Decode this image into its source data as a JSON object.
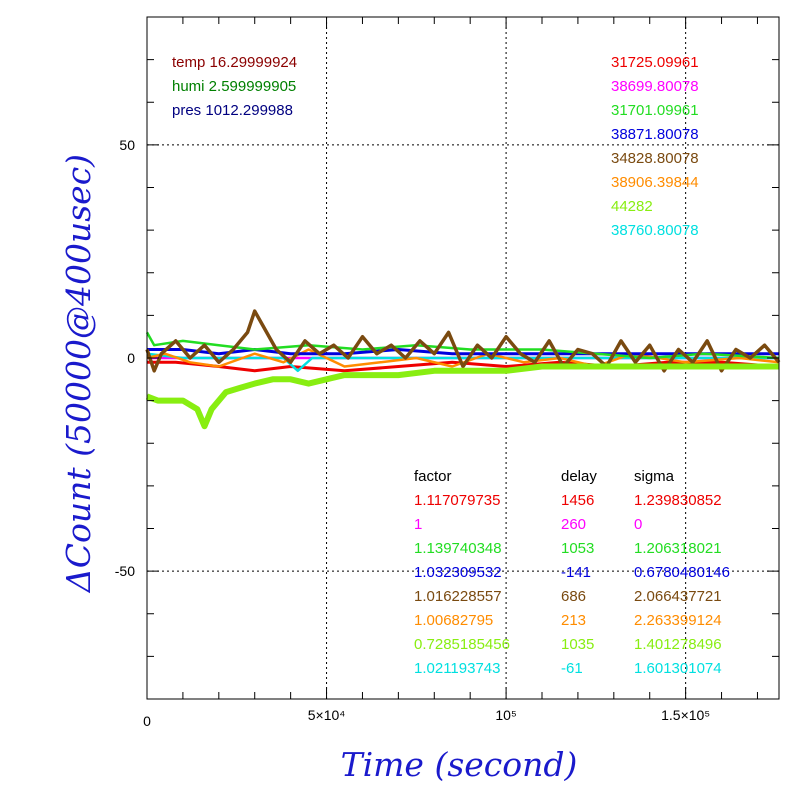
{
  "chart_data": {
    "type": "line",
    "title": "",
    "xlabel": "Time (second)",
    "ylabel": "ΔCount (50000@400usec)",
    "label_color": "#1a1acc",
    "xlim": [
      0,
      176000
    ],
    "ylim": [
      -80,
      80
    ],
    "grid": true,
    "x_ticks": [
      {
        "value": 0,
        "label": "0"
      },
      {
        "value": 50000,
        "label": "5×10⁴"
      },
      {
        "value": 100000,
        "label": "10⁵"
      },
      {
        "value": 150000,
        "label": "1.5×10⁵"
      }
    ],
    "y_ticks": [
      {
        "value": 50,
        "label": "50"
      },
      {
        "value": 0,
        "label": "0"
      },
      {
        "value": -50,
        "label": "-50"
      }
    ],
    "env_labels": [
      {
        "text": "temp 16.29999924",
        "color": "#8b0000"
      },
      {
        "text": "humi 2.599999905",
        "color": "#008000"
      },
      {
        "text": "pres 1012.299988",
        "color": "#000080"
      }
    ],
    "table_headers": {
      "factor": "factor",
      "delay": "delay",
      "sigma": "sigma"
    },
    "series": [
      {
        "name": "31725.09961",
        "color": "#ee0000",
        "factor": "1.117079735",
        "delay": "1456",
        "sigma": "1.239830852",
        "x": [
          0,
          8000,
          20000,
          30000,
          40000,
          55000,
          70000,
          85000,
          100000,
          115000,
          130000,
          145000,
          160000,
          176000
        ],
        "values": [
          -1,
          -1,
          -2,
          -3,
          -2,
          -3,
          -2,
          -1,
          -2,
          -1,
          -2,
          -1,
          -1,
          -2
        ]
      },
      {
        "name": "38699.80078",
        "color": "#ff00ff",
        "factor": "1",
        "delay": "260",
        "sigma": "0",
        "x": [
          0,
          176000
        ],
        "values": [
          0,
          0
        ]
      },
      {
        "name": "31701.09961",
        "color": "#22dd22",
        "factor": "1.139740348",
        "delay": "1053",
        "sigma": "1.206318021",
        "x": [
          0,
          2000,
          10000,
          20000,
          30000,
          45000,
          60000,
          75000,
          90000,
          110000,
          125000,
          140000,
          155000,
          176000
        ],
        "values": [
          6,
          3,
          4,
          3,
          2,
          3,
          2,
          3,
          2,
          2,
          1,
          0,
          1,
          0
        ]
      },
      {
        "name": "38871.80078",
        "color": "#0000dd",
        "factor": "1.032309532",
        "delay": "-141",
        "sigma": "0.6780480146",
        "x": [
          0,
          10000,
          20000,
          30000,
          40000,
          55000,
          70000,
          85000,
          100000,
          115000,
          130000,
          145000,
          160000,
          176000
        ],
        "values": [
          2,
          2,
          1,
          2,
          1,
          1,
          2,
          1,
          1,
          1,
          1,
          1,
          1,
          1
        ]
      },
      {
        "name": "34828.80078",
        "color": "#7a4a10",
        "factor": "1.016228557",
        "delay": "686",
        "sigma": "2.066437721",
        "x": [
          0,
          2000,
          4000,
          8000,
          12000,
          16000,
          20000,
          24000,
          28000,
          30000,
          32000,
          36000,
          40000,
          44000,
          48000,
          52000,
          56000,
          60000,
          64000,
          68000,
          72000,
          76000,
          80000,
          84000,
          88000,
          92000,
          96000,
          100000,
          104000,
          108000,
          112000,
          116000,
          120000,
          124000,
          128000,
          132000,
          136000,
          140000,
          144000,
          148000,
          152000,
          156000,
          160000,
          164000,
          168000,
          172000,
          176000
        ],
        "values": [
          2,
          -3,
          1,
          4,
          0,
          3,
          -1,
          2,
          6,
          11,
          8,
          2,
          -1,
          4,
          1,
          3,
          0,
          5,
          1,
          3,
          0,
          4,
          1,
          6,
          -2,
          3,
          0,
          5,
          1,
          -1,
          4,
          -2,
          2,
          1,
          -2,
          4,
          -1,
          3,
          -3,
          2,
          -1,
          4,
          -3,
          2,
          0,
          3,
          -1
        ]
      },
      {
        "name": "38906.39844",
        "color": "#ff8c00",
        "factor": "1.00682795",
        "delay": "213",
        "sigma": "2.263399124",
        "x": [
          0,
          5000,
          12000,
          20000,
          30000,
          38000,
          45000,
          55000,
          65000,
          75000,
          85000,
          95000,
          105000,
          115000,
          125000,
          135000,
          150000,
          165000,
          176000
        ],
        "values": [
          0,
          1,
          -1,
          -2,
          1,
          -1,
          2,
          -2,
          -1,
          0,
          -2,
          1,
          -1,
          0,
          -2,
          1,
          -1,
          0,
          -1
        ]
      },
      {
        "name": "44282",
        "color": "#88ee11",
        "factor": "0.7285185456",
        "delay": "1035",
        "sigma": "1.401278496",
        "x": [
          0,
          3000,
          6000,
          10000,
          14000,
          16000,
          18000,
          22000,
          26000,
          30000,
          35000,
          40000,
          45000,
          50000,
          55000,
          60000,
          70000,
          80000,
          90000,
          100000,
          110000,
          120000,
          130000,
          140000,
          150000,
          160000,
          176000
        ],
        "values": [
          -9,
          -10,
          -10,
          -10,
          -12,
          -16,
          -12,
          -8,
          -7,
          -6,
          -5,
          -5,
          -6,
          -5,
          -4,
          -4,
          -4,
          -3,
          -3,
          -3,
          -2,
          -2,
          -2,
          -2,
          -2,
          -2,
          -2
        ]
      },
      {
        "name": "38760.80078",
        "color": "#00e0e0",
        "factor": "1.021193743",
        "delay": "-61",
        "sigma": "1.601301074",
        "x": [
          0,
          10000,
          20000,
          30000,
          38000,
          42000,
          46000,
          55000,
          70000,
          85000,
          100000,
          120000,
          140000,
          160000,
          176000
        ],
        "values": [
          1,
          0,
          0,
          0,
          0,
          -3,
          0,
          0,
          0,
          0,
          0,
          0,
          0,
          0,
          0
        ]
      }
    ]
  }
}
